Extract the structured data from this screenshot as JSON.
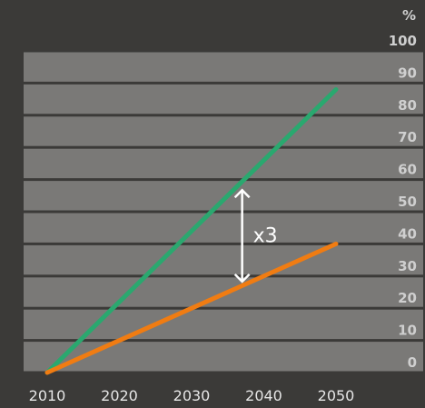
{
  "chart_data": {
    "type": "line",
    "title": "",
    "xlabel": "",
    "ylabel": "%",
    "x": [
      2010,
      2050
    ],
    "xticks": [
      2010,
      2020,
      2030,
      2040,
      2050
    ],
    "xlim": [
      2010,
      2050
    ],
    "ylim": [
      0,
      100
    ],
    "yticks": [
      0,
      10,
      20,
      30,
      40,
      50,
      60,
      70,
      80,
      90,
      100
    ],
    "grid": true,
    "series": [
      {
        "values": [
          0,
          88
        ],
        "color": "#2aa86f"
      },
      {
        "values": [
          0,
          40
        ],
        "color": "#f07c12"
      }
    ],
    "annotation": {
      "text": "x3",
      "x": 2037,
      "y_from": 28,
      "y_to": 57
    }
  },
  "colors": {
    "background": "#3b3a38",
    "plot_band": "#7a7977",
    "grid_line": "#3b3a38",
    "text": "#e6e6e6"
  }
}
